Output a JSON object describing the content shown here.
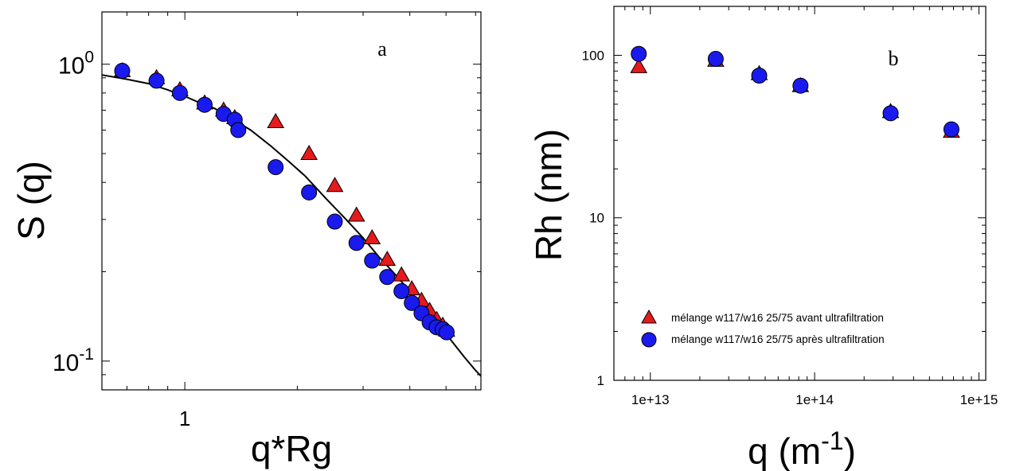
{
  "chart_data": [
    {
      "type": "scatter",
      "panel_label": "a",
      "xlabel": "q*Rg",
      "ylabel": "S (q)",
      "x_scale": "log",
      "y_scale": "log",
      "xlim": [
        0.6,
        6.2
      ],
      "ylim": [
        0.08,
        1.5
      ],
      "x_tick_labels": [
        {
          "value": 1,
          "label": "1"
        }
      ],
      "y_tick_labels": [
        {
          "value": 1,
          "base": "10",
          "exp": "0"
        },
        {
          "value": 0.1,
          "base": "10",
          "exp": "-1"
        }
      ],
      "grid": false,
      "legend": "none",
      "series": [
        {
          "marker": "triangle",
          "color": "#e41a1c",
          "x": [
            0.68,
            0.84,
            0.97,
            1.13,
            1.27,
            1.36,
            1.75,
            2.15,
            2.52,
            2.88,
            3.17,
            3.48,
            3.8,
            4.05,
            4.3,
            4.52,
            4.72,
            4.9,
            5.02
          ],
          "y": [
            0.95,
            0.9,
            0.82,
            0.74,
            0.7,
            0.66,
            0.64,
            0.5,
            0.39,
            0.31,
            0.26,
            0.22,
            0.195,
            0.175,
            0.16,
            0.148,
            0.138,
            0.132,
            0.127
          ]
        },
        {
          "marker": "circle",
          "color": "#1a1aee",
          "x": [
            0.68,
            0.84,
            0.97,
            1.13,
            1.27,
            1.36,
            1.39,
            1.75,
            2.15,
            2.52,
            2.88,
            3.17,
            3.48,
            3.8,
            4.05,
            4.3,
            4.52,
            4.72,
            4.9,
            5.02
          ],
          "y": [
            0.95,
            0.88,
            0.8,
            0.73,
            0.68,
            0.65,
            0.6,
            0.45,
            0.37,
            0.295,
            0.25,
            0.218,
            0.192,
            0.172,
            0.157,
            0.145,
            0.135,
            0.13,
            0.128,
            0.125
          ]
        },
        {
          "type": "line",
          "color": "#000000",
          "x": [
            0.6,
            0.7,
            0.8,
            0.9,
            1.0,
            1.1,
            1.2,
            1.35,
            1.5,
            1.7,
            1.9,
            2.1,
            2.4,
            2.7,
            3.0,
            3.3,
            3.6,
            4.0,
            4.4,
            4.8,
            5.2,
            5.6,
            6.0,
            6.2
          ],
          "y": [
            0.92,
            0.89,
            0.86,
            0.82,
            0.78,
            0.74,
            0.71,
            0.65,
            0.6,
            0.53,
            0.47,
            0.42,
            0.35,
            0.3,
            0.26,
            0.225,
            0.2,
            0.172,
            0.15,
            0.132,
            0.116,
            0.103,
            0.093,
            0.089
          ]
        }
      ]
    },
    {
      "type": "scatter",
      "panel_label": "b",
      "xlabel": "q (m",
      "xlabel_exp": "-1",
      "xlabel_close": ")",
      "ylabel": "Rh (nm)",
      "x_scale": "log",
      "y_scale": "log",
      "xlim": [
        6000000000000.0,
        1100000000000000.0
      ],
      "ylim": [
        1,
        200
      ],
      "x_tick_labels": [
        {
          "value": 10000000000000.0,
          "label": "1e+13"
        },
        {
          "value": 100000000000000.0,
          "label": "1e+14"
        },
        {
          "value": 1000000000000000.0,
          "label": "1e+15"
        }
      ],
      "y_tick_labels": [
        {
          "value": 1,
          "label": "1"
        },
        {
          "value": 10,
          "label": "10"
        },
        {
          "value": 100,
          "label": "100"
        }
      ],
      "grid": false,
      "legend": "bottom-left",
      "series": [
        {
          "name": "mélange w117/w16 25/75 avant ultrafiltration",
          "marker": "triangle",
          "color": "#e41a1c",
          "x": [
            8500000000000.0,
            25000000000000.0,
            46000000000000.0,
            82000000000000.0,
            290000000000000.0,
            680000000000000.0
          ],
          "y": [
            85,
            93,
            77,
            65,
            45,
            34
          ]
        },
        {
          "name": "mélange w117/w16 25/75 après ultrafiltration",
          "marker": "circle",
          "color": "#1a1aee",
          "x": [
            8500000000000.0,
            25000000000000.0,
            46000000000000.0,
            82000000000000.0,
            290000000000000.0,
            680000000000000.0
          ],
          "y": [
            102,
            95,
            75,
            65,
            44,
            35
          ]
        }
      ]
    }
  ]
}
